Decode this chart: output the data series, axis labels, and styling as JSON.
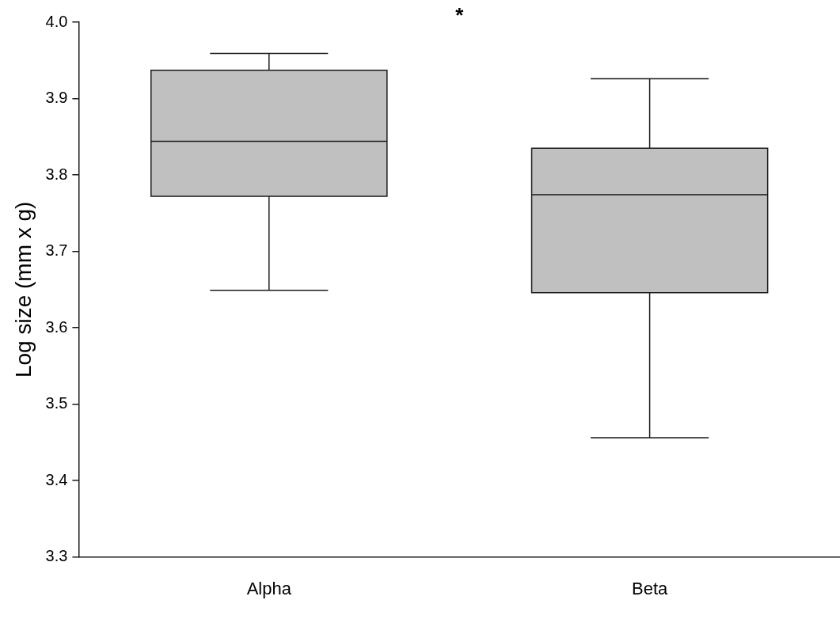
{
  "chart_data": {
    "type": "box",
    "ylabel": "Log size (mm x g)",
    "categories": [
      "Alpha",
      "Beta"
    ],
    "series": [
      {
        "color": "#c0c0c0",
        "boxes": [
          {
            "low": 3.649,
            "q1": 3.772,
            "median": 3.844,
            "q3": 3.937,
            "high": 3.959
          },
          {
            "low": 3.456,
            "q1": 3.646,
            "median": 3.774,
            "q3": 3.835,
            "high": 3.926
          }
        ]
      }
    ],
    "ylim": [
      3.3,
      4.0
    ],
    "yticks": [
      3.3,
      3.4,
      3.5,
      3.6,
      3.7,
      3.8,
      3.9,
      {
        "value": 4,
        "label": "4.0"
      }
    ],
    "grid": false,
    "legend": false,
    "annotations": [
      "*"
    ]
  }
}
